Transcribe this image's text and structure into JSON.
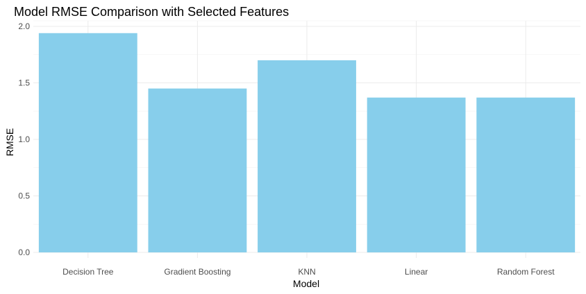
{
  "chart_data": {
    "type": "bar",
    "title": "Model RMSE Comparison with Selected Features",
    "xlabel": "Model",
    "ylabel": "RMSE",
    "categories": [
      "Decision Tree",
      "Gradient Boosting",
      "KNN",
      "Linear",
      "Random Forest"
    ],
    "values": [
      1.94,
      1.45,
      1.7,
      1.37,
      1.37
    ],
    "ylim": [
      0,
      2.0
    ],
    "yticks": [
      "0.0",
      "0.5",
      "1.0",
      "1.5",
      "2.0"
    ],
    "grid": true,
    "legend": "none",
    "bar_color": "#87CEEB"
  }
}
